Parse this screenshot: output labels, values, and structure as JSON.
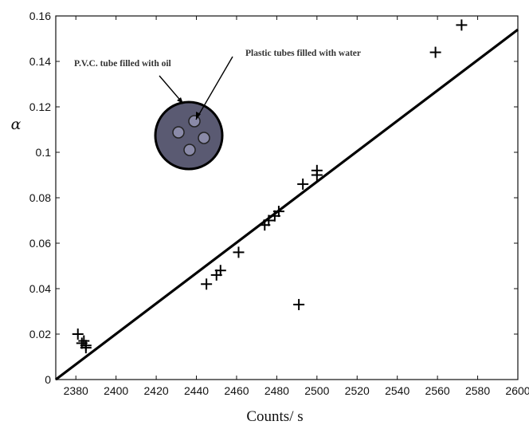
{
  "chart_data": {
    "type": "scatter",
    "title": "",
    "xlabel": "Counts/ s",
    "ylabel": "α",
    "xlim": [
      2370,
      2600
    ],
    "ylim": [
      0,
      0.16
    ],
    "xticks": [
      "2380",
      "2400",
      "2420",
      "2440",
      "2460",
      "2480",
      "2500",
      "2520",
      "2540",
      "2560",
      "2580",
      "2600"
    ],
    "yticks": [
      "0",
      "0.02",
      "0.04",
      "0.06",
      "0.08",
      "0.1",
      "0.12",
      "0.14",
      "0.16"
    ],
    "grid": false,
    "marker": "+",
    "points": [
      {
        "x": 2381,
        "y": 0.02
      },
      {
        "x": 2383,
        "y": 0.016
      },
      {
        "x": 2384,
        "y": 0.017
      },
      {
        "x": 2385,
        "y": 0.015
      },
      {
        "x": 2385,
        "y": 0.014
      },
      {
        "x": 2445,
        "y": 0.042
      },
      {
        "x": 2450,
        "y": 0.046
      },
      {
        "x": 2452,
        "y": 0.048
      },
      {
        "x": 2461,
        "y": 0.056
      },
      {
        "x": 2474,
        "y": 0.068
      },
      {
        "x": 2476,
        "y": 0.07
      },
      {
        "x": 2479,
        "y": 0.072
      },
      {
        "x": 2481,
        "y": 0.074
      },
      {
        "x": 2491,
        "y": 0.033
      },
      {
        "x": 2493,
        "y": 0.086
      },
      {
        "x": 2500,
        "y": 0.092
      },
      {
        "x": 2500,
        "y": 0.09
      },
      {
        "x": 2559,
        "y": 0.144
      },
      {
        "x": 2572,
        "y": 0.156
      }
    ],
    "fit_line": {
      "x": [
        2370,
        2600
      ],
      "y": [
        0.0,
        0.154
      ]
    },
    "annotations": [
      {
        "text": "Plastic  tubes filled with water"
      },
      {
        "text": "P.V.C. tube filled with oil"
      }
    ]
  }
}
